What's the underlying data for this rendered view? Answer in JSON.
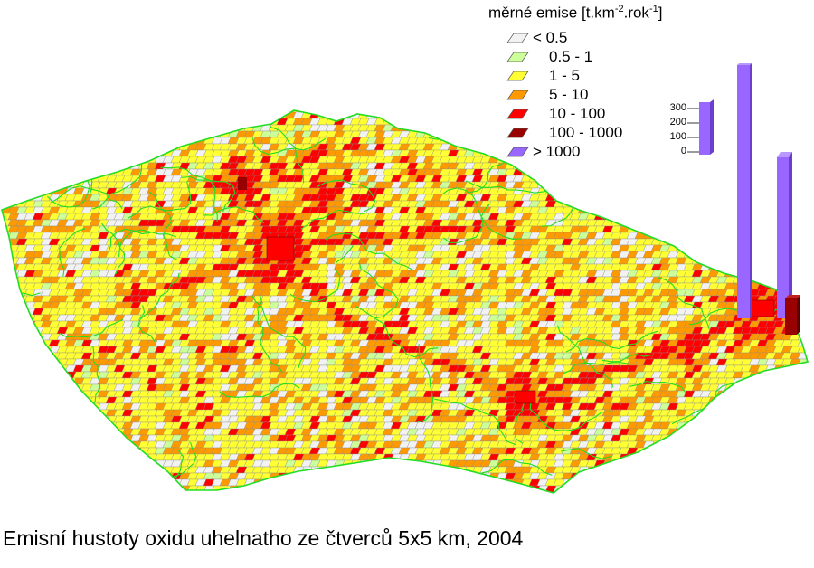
{
  "legend": {
    "title_prefix": "měrné emise [t.km",
    "title_sup1": "-2",
    "title_mid": ".rok",
    "title_sup2": "-1",
    "title_suffix": "]",
    "classes": [
      {
        "label": "< 0.5",
        "color": "#f2f2f2"
      },
      {
        "label": "0.5 - 1",
        "color": "#ccff99"
      },
      {
        "label": "1 - 5",
        "color": "#ffff33"
      },
      {
        "label": "5 - 10",
        "color": "#ff9900"
      },
      {
        "label": "10 - 100",
        "color": "#ff0000"
      },
      {
        "label": "100 - 1000",
        "color": "#990000"
      },
      {
        "label": "> 1000",
        "color": "#9966ff"
      }
    ]
  },
  "bar_scale": {
    "ticks": [
      "300",
      "200",
      "100",
      "0"
    ],
    "color": "#9966ff"
  },
  "map": {
    "district_border_color": "#22dd22"
  },
  "caption": "Emisní hustoty oxidu uhelnatho ze čtverců 5x5 km, 2004"
}
